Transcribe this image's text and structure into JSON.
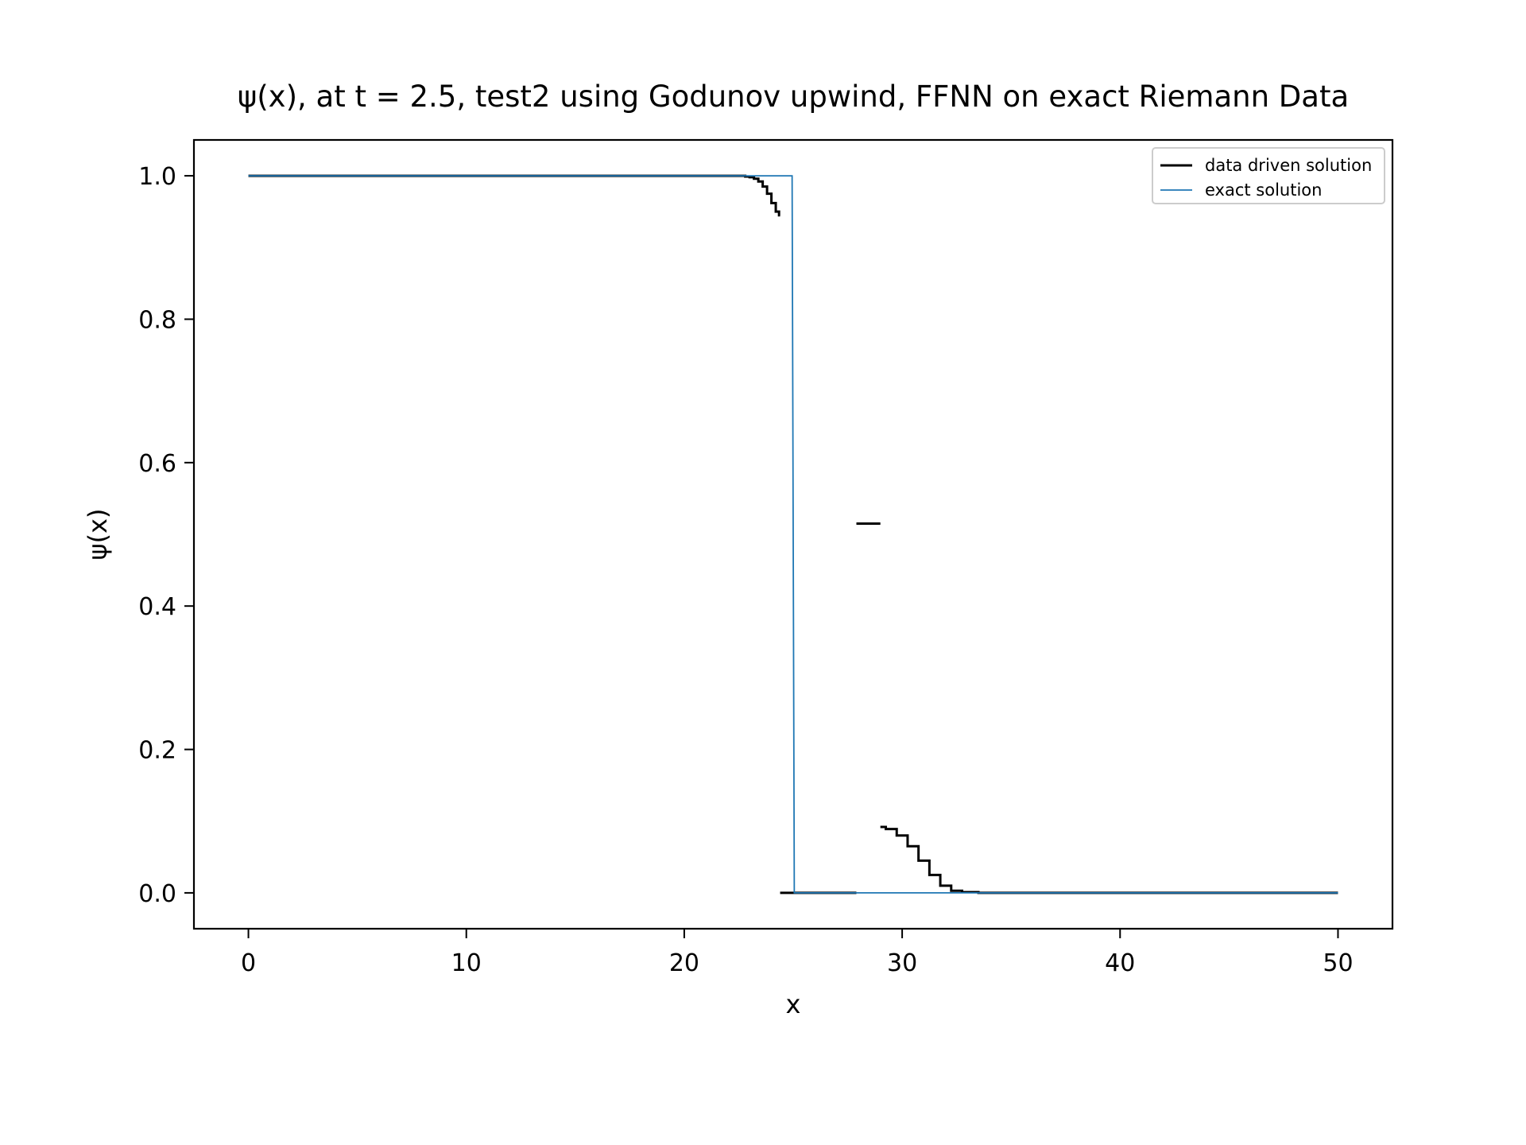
{
  "chart_data": {
    "type": "line",
    "title": "ψ(x), at t = 2.5, test2 using Godunov upwind, FFNN on exact Riemann Data",
    "xlabel": "x",
    "ylabel": "ψ(x)",
    "xlim": [
      -2.5,
      52.5
    ],
    "ylim": [
      -0.05,
      1.05
    ],
    "xticks": [
      0,
      10,
      20,
      30,
      40,
      50
    ],
    "yticks": [
      0.0,
      0.2,
      0.4,
      0.6,
      0.8,
      1.0
    ],
    "xtick_labels": [
      "0",
      "10",
      "20",
      "30",
      "40",
      "50"
    ],
    "ytick_labels": [
      "0.0",
      "0.2",
      "0.4",
      "0.6",
      "0.8",
      "1.0"
    ],
    "grid": false,
    "legend": "top-right",
    "series": [
      {
        "name": "data driven solution",
        "color": "#000000",
        "style": "steps-mid",
        "segments": [
          {
            "x": [
              0,
              22.7,
              22.9,
              23.1,
              23.3,
              23.5,
              23.7,
              23.9,
              24.1,
              24.3,
              24.4
            ],
            "y": [
              1.0,
              1.0,
              0.999,
              0.998,
              0.996,
              0.992,
              0.985,
              0.975,
              0.962,
              0.95,
              0.945
            ]
          },
          {
            "x": [
              24.4,
              27.9
            ],
            "y": [
              0.0,
              0.0
            ]
          },
          {
            "x": [
              27.9,
              29.0
            ],
            "y": [
              0.515,
              0.515
            ]
          },
          {
            "x": [
              29.0,
              29.5,
              30.0,
              30.5,
              31.0,
              31.5,
              32.0,
              32.5,
              33.0,
              34.0,
              50.0
            ],
            "y": [
              0.092,
              0.089,
              0.08,
              0.065,
              0.045,
              0.025,
              0.01,
              0.003,
              0.001,
              0.0,
              0.0
            ]
          }
        ]
      },
      {
        "name": "exact solution",
        "color": "#1f77b4",
        "style": "line",
        "segments": [
          {
            "x": [
              0,
              24.95,
              25.05,
              50
            ],
            "y": [
              1.0,
              1.0,
              0.0,
              0.0
            ]
          }
        ]
      }
    ]
  }
}
